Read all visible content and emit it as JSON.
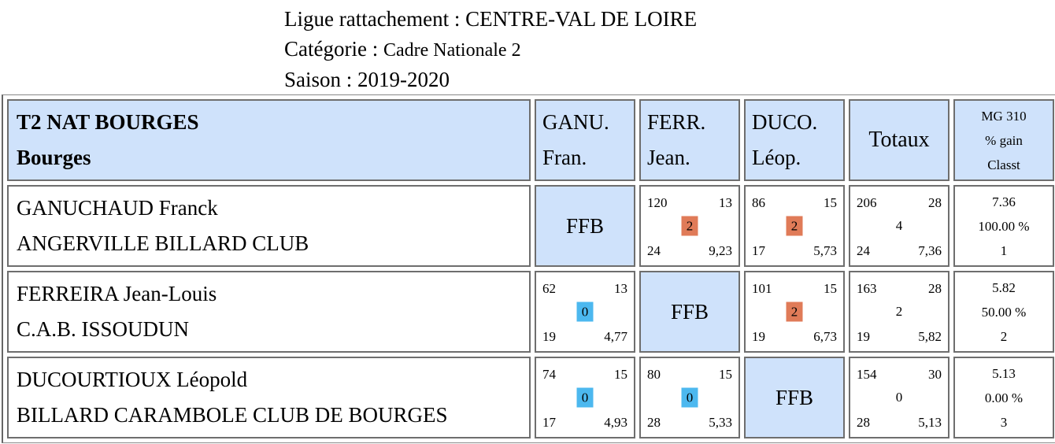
{
  "header": {
    "ligue_label": "Ligue rattachement : ",
    "ligue_value": "CENTRE-VAL DE LOIRE",
    "categorie_label": "Catégorie : ",
    "categorie_value": "Cadre Nationale 2",
    "saison_label": "Saison : ",
    "saison_value": "2019-2020"
  },
  "table": {
    "team_name": "T2 NAT BOURGES",
    "team_city": "Bourges",
    "columns": [
      {
        "line1": "GANU.",
        "line2": "Fran."
      },
      {
        "line1": "FERR.",
        "line2": "Jean."
      },
      {
        "line1": "DUCO.",
        "line2": "Léop."
      }
    ],
    "totaux_label": "Totaux",
    "mg_label": "MG 310",
    "gain_label": "% gain",
    "classt_label": "Classt",
    "self_label": "FFB",
    "colors": {
      "header_bg": "#cfe2fb",
      "win": "#e07b58",
      "loss": "#4cb8ef"
    },
    "rows": [
      {
        "name": "GANUCHAUD Franck",
        "club": "ANGERVILLE BILLARD CLUB",
        "cells": [
          null,
          {
            "points": "120",
            "reprises": "13",
            "result": "2",
            "serie": "24",
            "moyenne": "9,23",
            "outcome": "win"
          },
          {
            "points": "86",
            "reprises": "15",
            "result": "2",
            "serie": "17",
            "moyenne": "5,73",
            "outcome": "win"
          }
        ],
        "totals": {
          "points": "206",
          "reprises": "28",
          "result": "4",
          "serie": "24",
          "moyenne": "7,36"
        },
        "mg": "7.36",
        "gain": "100.00 %",
        "classt": "1"
      },
      {
        "name": "FERREIRA Jean-Louis",
        "club": "C.A.B. ISSOUDUN",
        "cells": [
          {
            "points": "62",
            "reprises": "13",
            "result": "0",
            "serie": "19",
            "moyenne": "4,77",
            "outcome": "loss"
          },
          null,
          {
            "points": "101",
            "reprises": "15",
            "result": "2",
            "serie": "19",
            "moyenne": "6,73",
            "outcome": "win"
          }
        ],
        "totals": {
          "points": "163",
          "reprises": "28",
          "result": "2",
          "serie": "19",
          "moyenne": "5,82"
        },
        "mg": "5.82",
        "gain": "50.00 %",
        "classt": "2"
      },
      {
        "name": "DUCOURTIOUX Léopold",
        "club": "BILLARD CARAMBOLE CLUB DE BOURGES",
        "cells": [
          {
            "points": "74",
            "reprises": "15",
            "result": "0",
            "serie": "17",
            "moyenne": "4,93",
            "outcome": "loss"
          },
          {
            "points": "80",
            "reprises": "15",
            "result": "0",
            "serie": "28",
            "moyenne": "5,33",
            "outcome": "loss"
          },
          null
        ],
        "totals": {
          "points": "154",
          "reprises": "30",
          "result": "0",
          "serie": "28",
          "moyenne": "5,13"
        },
        "mg": "5.13",
        "gain": "0.00 %",
        "classt": "3"
      }
    ]
  }
}
